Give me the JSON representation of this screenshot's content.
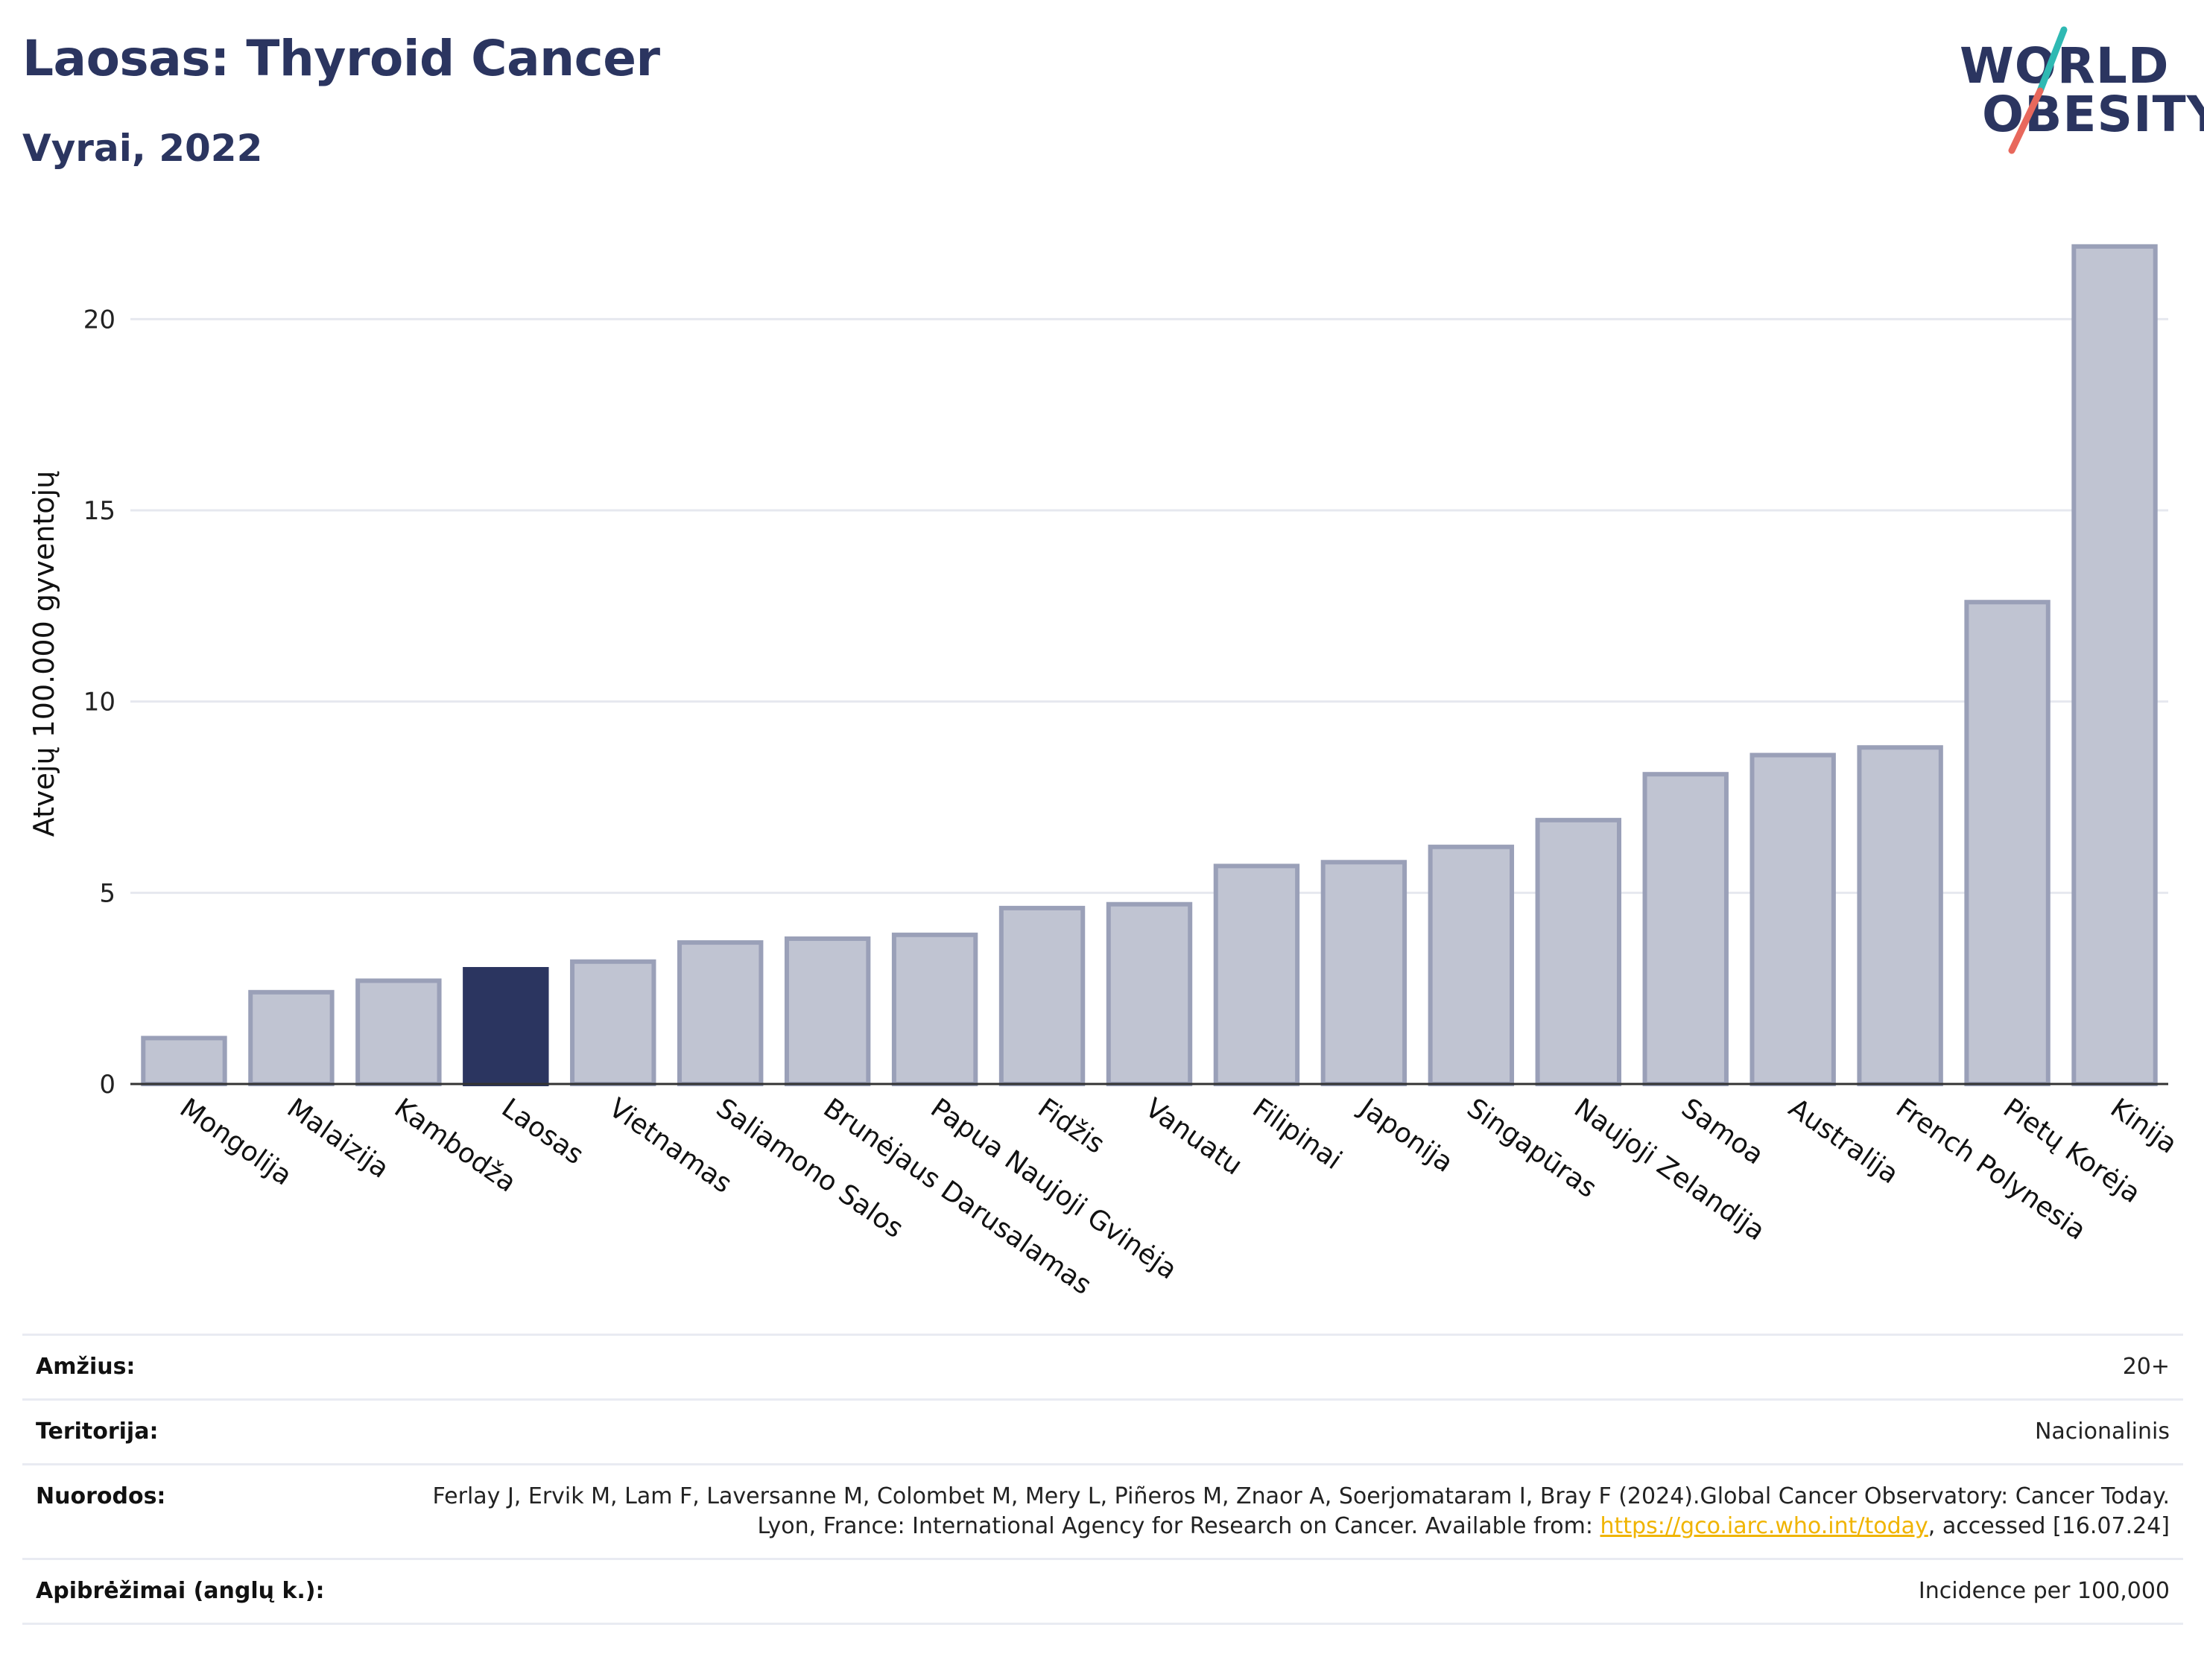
{
  "header": {
    "title": "Laosas: Thyroid Cancer",
    "subtitle": "Vyrai, 2022"
  },
  "logo": {
    "line1": "WORLD",
    "line2": "OBESITY",
    "slash_colors": [
      "#2fb9b3",
      "#e8685c"
    ]
  },
  "colors": {
    "highlight": "#2b3560",
    "bar": "#c0c4d2",
    "bar_border": "#9aa0b8",
    "grid": "#e6e8ef"
  },
  "chart_data": {
    "type": "bar",
    "title": "Laosas: Thyroid Cancer",
    "subtitle": "Vyrai, 2022",
    "ylabel": "Atvejų 100.000 gyventojų",
    "xlabel": "",
    "ylim": [
      0,
      22.5
    ],
    "yticks": [
      0,
      5,
      10,
      15,
      20
    ],
    "grid": true,
    "highlight_category": "Laosas",
    "categories": [
      "Mongolija",
      "Malaizija",
      "Kambodža",
      "Laosas",
      "Vietnamas",
      "Saliamono Salos",
      "Brunėjaus Darusalamas",
      "Papua Naujoji Gvinėja",
      "Fidžis",
      "Vanuatu",
      "Filipinai",
      "Japonija",
      "Singapūras",
      "Naujoji Zelandija",
      "Samoa",
      "Australija",
      "French Polynesia",
      "Pietų Korėja",
      "Kinija"
    ],
    "values": [
      1.2,
      2.4,
      2.7,
      3.0,
      3.2,
      3.7,
      3.8,
      3.9,
      4.6,
      4.7,
      5.7,
      5.8,
      6.2,
      6.9,
      8.1,
      8.6,
      8.8,
      12.6,
      21.9
    ]
  },
  "info": {
    "rows": [
      {
        "label": "Amžius:",
        "value": "20+"
      },
      {
        "label": "Teritorija:",
        "value": "Nacionalinis"
      },
      {
        "label": "Nuorodos:",
        "value_before": "Ferlay J, Ervik M, Lam F, Laversanne M, Colombet M, Mery L, Piñeros M, Znaor A, Soerjomataram I, Bray F (2024).Global Cancer Observatory: Cancer Today. Lyon, France: International Agency for Research on Cancer. Available from: ",
        "link": "https://gco.iarc.who.int/today",
        "value_after": ", accessed [16.07.24]"
      },
      {
        "label": "Apibrėžimai (anglų k.):",
        "value": "Incidence per 100,000"
      }
    ]
  }
}
